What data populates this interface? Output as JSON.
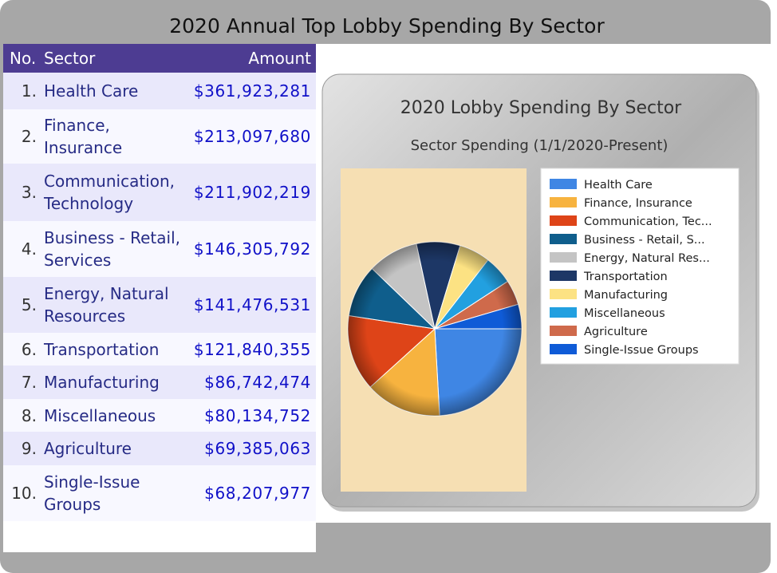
{
  "page_title": "2020 Annual Top Lobby Spending By Sector",
  "table": {
    "headers": {
      "no": "No.",
      "sector": "Sector",
      "amount": "Amount"
    },
    "rows": [
      {
        "no": "1.",
        "sector_lines": [
          "Health Care"
        ],
        "amount": "$361,923,281"
      },
      {
        "no": "2.",
        "sector_lines": [
          "Finance,",
          "Insurance"
        ],
        "amount": "$213,097,680"
      },
      {
        "no": "3.",
        "sector_lines": [
          "Communication,",
          "Technology"
        ],
        "amount": "$211,902,219"
      },
      {
        "no": "4.",
        "sector_lines": [
          "Business - Retail,",
          "Services"
        ],
        "amount": "$146,305,792"
      },
      {
        "no": "5.",
        "sector_lines": [
          "Energy, Natural",
          "Resources"
        ],
        "amount": "$141,476,531"
      },
      {
        "no": "6.",
        "sector_lines": [
          "Transportation"
        ],
        "amount": "$121,840,355"
      },
      {
        "no": "7.",
        "sector_lines": [
          "Manufacturing"
        ],
        "amount": "$86,742,474"
      },
      {
        "no": "8.",
        "sector_lines": [
          "Miscellaneous"
        ],
        "amount": "$80,134,752"
      },
      {
        "no": "9.",
        "sector_lines": [
          "Agriculture"
        ],
        "amount": "$69,385,063"
      },
      {
        "no": "10.",
        "sector_lines": [
          "Single-Issue",
          "Groups"
        ],
        "amount": "$68,207,977"
      }
    ]
  },
  "chart_data": {
    "type": "pie",
    "title": "2020 Lobby Spending By Sector",
    "subtitle": "Sector Spending  (1/1/2020-Present)",
    "legend_position": "right",
    "categories": [
      "Health Care",
      "Finance, Insurance",
      "Communication, Technology",
      "Business - Retail, Services",
      "Energy,  Natural Resources",
      "Transportation",
      "Manufacturing",
      "Miscellaneous",
      "Agriculture",
      "Single-Issue Groups"
    ],
    "legend_labels": [
      "Health Care",
      "Finance, Insurance",
      "Communication, Tec...",
      "Business - Retail, S...",
      "Energy,  Natural Res...",
      "Transportation",
      "Manufacturing",
      "Miscellaneous",
      "Agriculture",
      "Single-Issue Groups"
    ],
    "values": [
      361923281,
      213097680,
      211902219,
      146305792,
      141476531,
      121840355,
      86742474,
      80134752,
      69385063,
      68207977
    ],
    "colors": [
      "#3f86e4",
      "#f7b33f",
      "#de4418",
      "#0f5e8c",
      "#c4c4c4",
      "#1d3766",
      "#fce283",
      "#22a0e0",
      "#cf6a4b",
      "#0f5bd7"
    ]
  }
}
